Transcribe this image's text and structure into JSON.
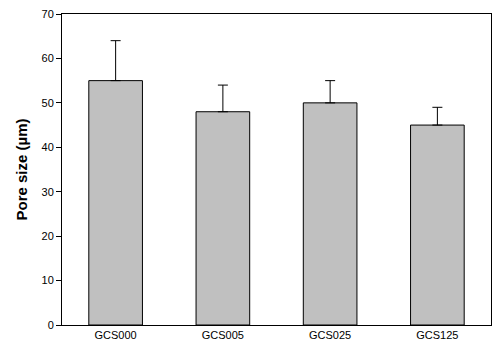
{
  "chart_data": {
    "type": "bar",
    "ylabel": "Pore size (µm)",
    "categories": [
      "GCS000",
      "GCS005",
      "GCS025",
      "GCS125"
    ],
    "values": [
      55,
      48,
      50,
      45
    ],
    "errors": [
      9,
      6,
      5,
      4
    ],
    "color": "#c0c0c0",
    "ylim": [
      0,
      70
    ],
    "yticks": [
      0,
      10,
      20,
      30,
      40,
      50,
      60,
      70
    ],
    "grid": false
  }
}
